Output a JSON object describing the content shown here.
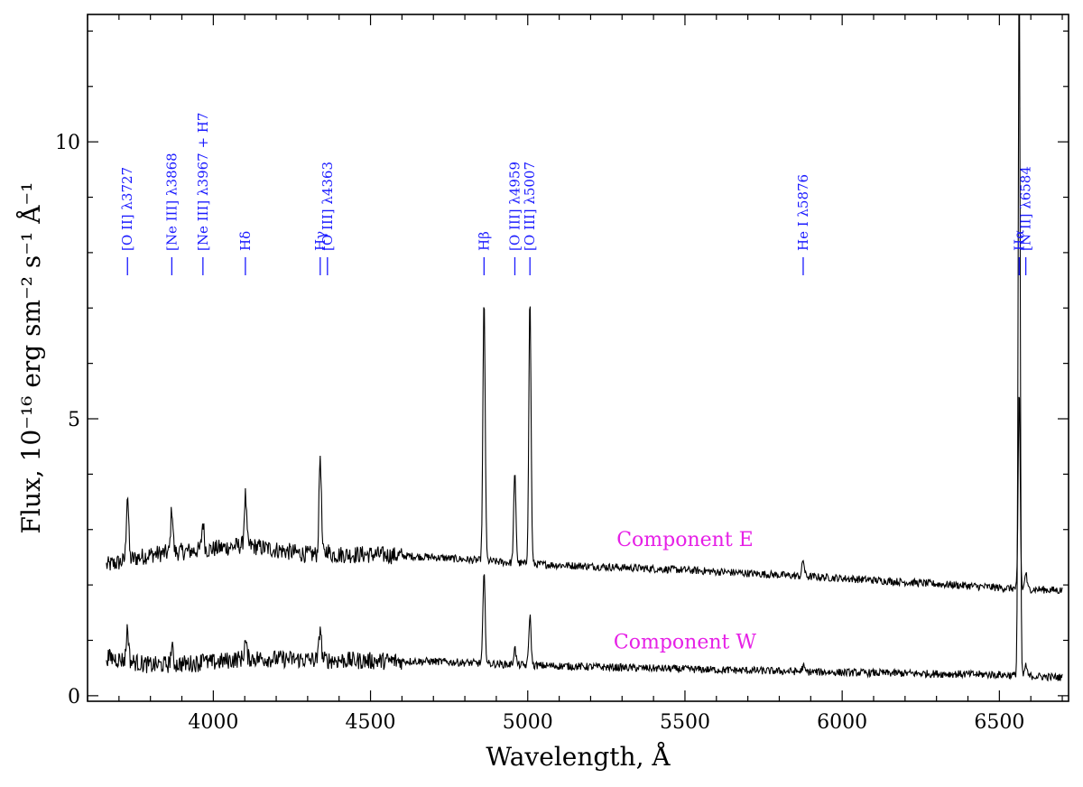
{
  "chart_data": {
    "type": "line",
    "xlabel": "Wavelength, Å",
    "ylabel": "Flux, 10⁻¹⁶ erg sm⁻² s⁻¹ Å⁻¹",
    "xlim": [
      3600,
      6720
    ],
    "ylim": [
      -0.1,
      12.3
    ],
    "x_ticks": [
      4000,
      4500,
      5000,
      5500,
      6000,
      6500
    ],
    "x_tick_labels": [
      "4000",
      "4500",
      "5000",
      "5500",
      "6000",
      "6500"
    ],
    "y_ticks": [
      0,
      5,
      10
    ],
    "y_tick_labels": [
      "0",
      "5",
      "10"
    ],
    "grid": false,
    "series": [
      {
        "name": "Component E",
        "continuum": [
          [
            3660,
            2.35
          ],
          [
            3800,
            2.55
          ],
          [
            4000,
            2.65
          ],
          [
            4100,
            2.72
          ],
          [
            4300,
            2.55
          ],
          [
            4500,
            2.55
          ],
          [
            4700,
            2.5
          ],
          [
            5000,
            2.38
          ],
          [
            5500,
            2.27
          ],
          [
            6000,
            2.12
          ],
          [
            6500,
            1.95
          ],
          [
            6700,
            1.9
          ]
        ],
        "lines": [
          [
            3727,
            1.2
          ],
          [
            3868,
            0.8
          ],
          [
            3967,
            0.5
          ],
          [
            4102,
            0.9
          ],
          [
            4340,
            1.8
          ],
          [
            4363,
            0.1
          ],
          [
            4861,
            4.7
          ],
          [
            4959,
            1.6
          ],
          [
            5007,
            4.8
          ],
          [
            5876,
            0.3
          ],
          [
            6563,
            3.6
          ],
          [
            6584,
            0.3
          ]
        ],
        "color": "#000000"
      },
      {
        "name": "Component W",
        "continuum": [
          [
            3660,
            0.7
          ],
          [
            3800,
            0.55
          ],
          [
            4000,
            0.6
          ],
          [
            4100,
            0.68
          ],
          [
            4300,
            0.65
          ],
          [
            4500,
            0.63
          ],
          [
            4700,
            0.62
          ],
          [
            5000,
            0.55
          ],
          [
            5500,
            0.48
          ],
          [
            6000,
            0.42
          ],
          [
            6500,
            0.38
          ],
          [
            6700,
            0.33
          ]
        ],
        "lines": [
          [
            3727,
            0.6
          ],
          [
            3868,
            0.3
          ],
          [
            3967,
            0.2
          ],
          [
            4102,
            0.3
          ],
          [
            4340,
            0.6
          ],
          [
            4861,
            1.6
          ],
          [
            4959,
            0.3
          ],
          [
            5007,
            0.9
          ],
          [
            5876,
            0.1
          ],
          [
            6563,
            13.0
          ],
          [
            6584,
            0.2
          ]
        ],
        "color": "#000000"
      }
    ],
    "annotations": [
      {
        "text": "[O II] λ3727",
        "x": 3727
      },
      {
        "text": "[Ne III] λ3868",
        "x": 3868
      },
      {
        "text": "[Ne III] λ3967 + H7",
        "x": 3967
      },
      {
        "text": "Hδ",
        "x": 4102
      },
      {
        "text": "Hγ",
        "x": 4340
      },
      {
        "text": "[O III] λ4363",
        "x": 4363
      },
      {
        "text": "Hβ",
        "x": 4861
      },
      {
        "text": "[O III] λ4959",
        "x": 4959
      },
      {
        "text": "[O III] λ5007",
        "x": 5007
      },
      {
        "text": "He I λ5876",
        "x": 5876
      },
      {
        "text": "Hα",
        "x": 6563
      },
      {
        "text": "[N II] λ6584",
        "x": 6584
      }
    ],
    "series_labels": [
      {
        "text": "Component E",
        "x": 5500,
        "y": 2.7
      },
      {
        "text": "Component W",
        "x": 5500,
        "y": 0.85
      }
    ],
    "label_color": "#1a1aff",
    "series_label_color": "#e620e6"
  }
}
